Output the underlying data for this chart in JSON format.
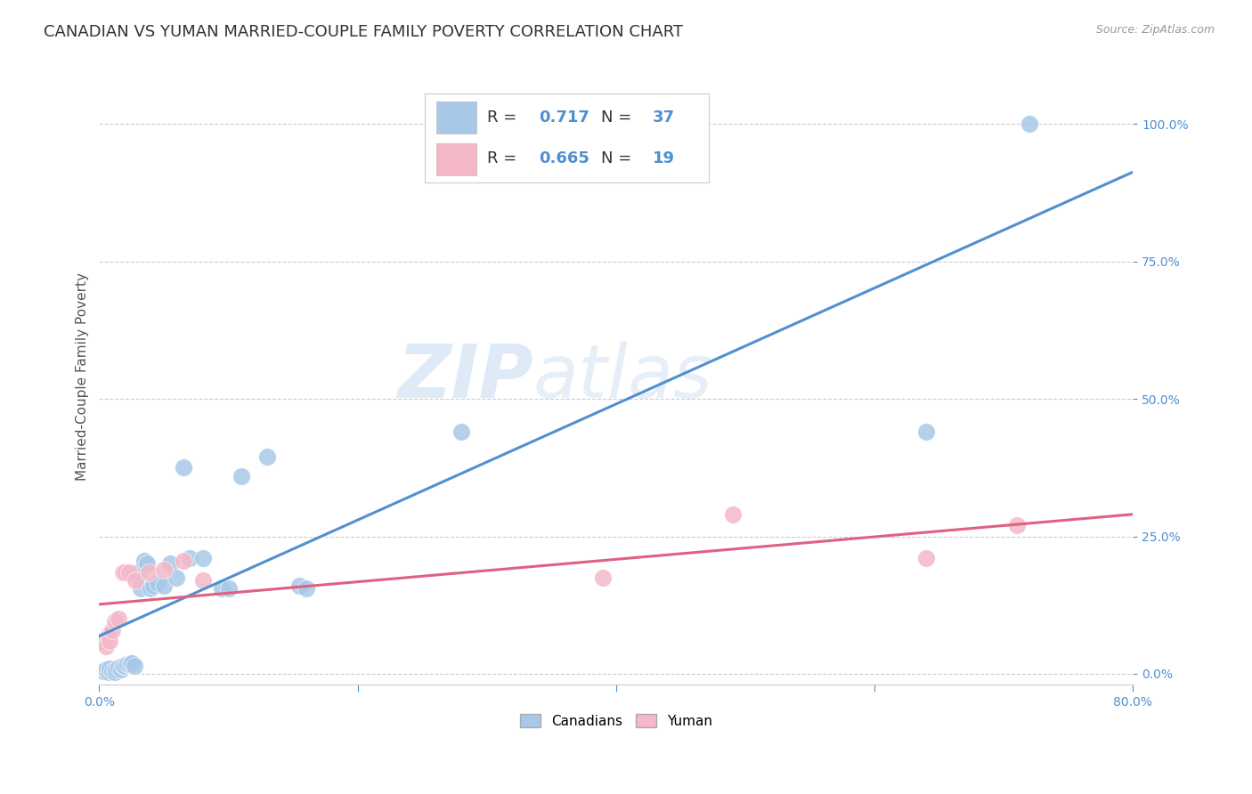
{
  "title": "CANADIAN VS YUMAN MARRIED-COUPLE FAMILY POVERTY CORRELATION CHART",
  "source": "Source: ZipAtlas.com",
  "ylabel": "Married-Couple Family Poverty",
  "xlim": [
    0.0,
    0.8
  ],
  "ylim": [
    -0.02,
    1.1
  ],
  "yticks": [
    0.0,
    0.25,
    0.5,
    0.75,
    1.0
  ],
  "ytick_labels": [
    "0.0%",
    "25.0%",
    "50.0%",
    "75.0%",
    "100.0%"
  ],
  "xticks": [
    0.0,
    0.2,
    0.4,
    0.6,
    0.8
  ],
  "xtick_labels": [
    "0.0%",
    "",
    "",
    "",
    "80.0%"
  ],
  "background_color": "#ffffff",
  "watermark_zip": "ZIP",
  "watermark_atlas": "atlas",
  "blue_R": 0.717,
  "blue_N": 37,
  "pink_R": 0.665,
  "pink_N": 19,
  "blue_color": "#a8c8e8",
  "pink_color": "#f4b8c8",
  "blue_line_color": "#5090d0",
  "pink_line_color": "#e06080",
  "canadians_x": [
    0.003,
    0.005,
    0.007,
    0.008,
    0.01,
    0.012,
    0.013,
    0.015,
    0.017,
    0.018,
    0.02,
    0.022,
    0.024,
    0.025,
    0.027,
    0.03,
    0.032,
    0.035,
    0.037,
    0.04,
    0.042,
    0.045,
    0.05,
    0.055,
    0.06,
    0.065,
    0.07,
    0.08,
    0.095,
    0.1,
    0.11,
    0.13,
    0.155,
    0.16,
    0.28,
    0.64,
    0.72
  ],
  "canadians_y": [
    0.005,
    0.008,
    0.003,
    0.01,
    0.005,
    0.003,
    0.008,
    0.012,
    0.008,
    0.015,
    0.015,
    0.018,
    0.018,
    0.02,
    0.015,
    0.185,
    0.155,
    0.205,
    0.2,
    0.155,
    0.16,
    0.165,
    0.16,
    0.2,
    0.175,
    0.375,
    0.21,
    0.21,
    0.155,
    0.155,
    0.36,
    0.395,
    0.16,
    0.155,
    0.44,
    0.44,
    1.0
  ],
  "yuman_x": [
    0.003,
    0.005,
    0.007,
    0.008,
    0.01,
    0.012,
    0.015,
    0.018,
    0.02,
    0.023,
    0.028,
    0.038,
    0.05,
    0.065,
    0.08,
    0.39,
    0.49,
    0.64,
    0.71
  ],
  "yuman_y": [
    0.06,
    0.05,
    0.07,
    0.06,
    0.08,
    0.095,
    0.1,
    0.185,
    0.185,
    0.185,
    0.17,
    0.185,
    0.19,
    0.205,
    0.17,
    0.175,
    0.29,
    0.21,
    0.27
  ],
  "grid_color": "#cccccc",
  "title_fontsize": 13,
  "axis_label_fontsize": 11,
  "tick_fontsize": 10,
  "legend_fontsize": 13
}
